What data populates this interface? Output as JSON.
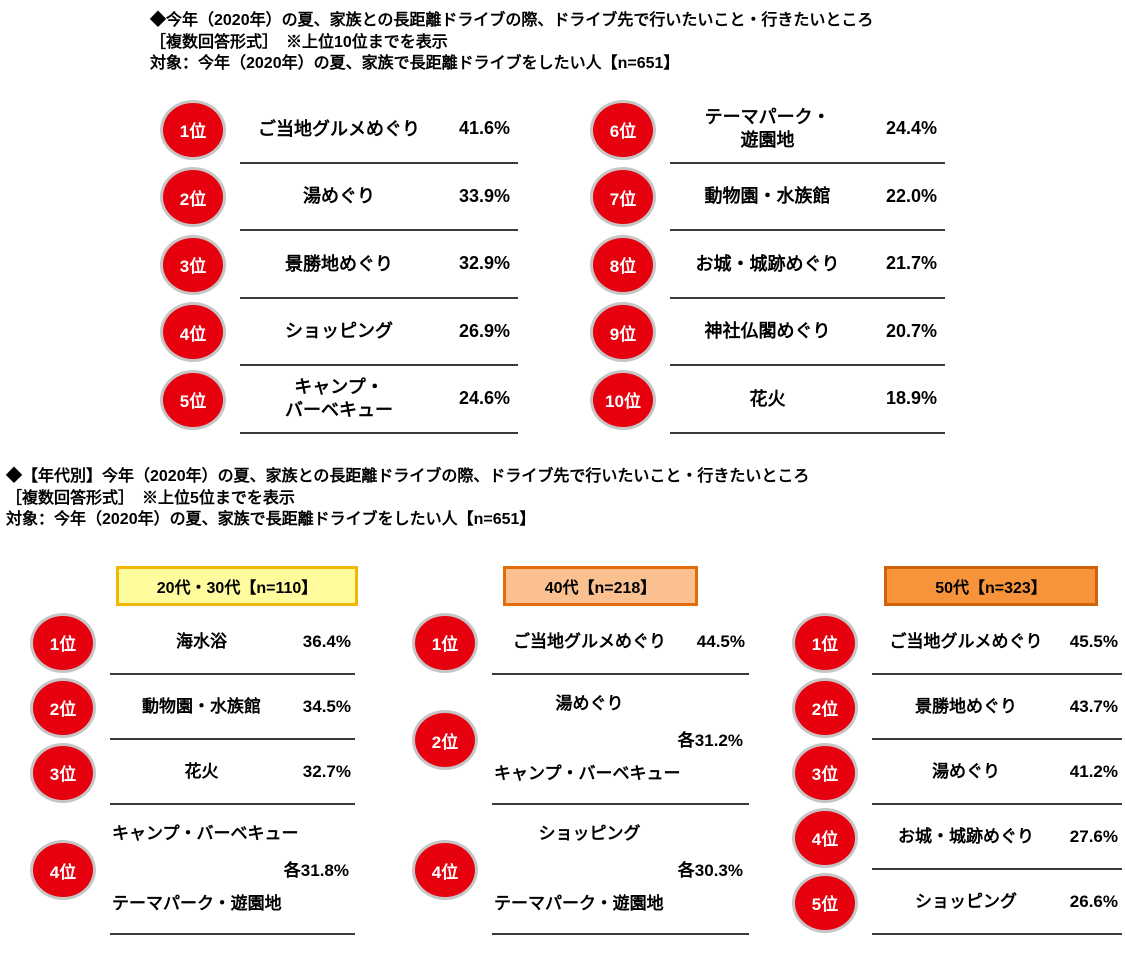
{
  "colors": {
    "badge_red": "#e7000e",
    "badge_ring": "#c6c6c6",
    "rule_line": "#3a3a3a",
    "age_group_1_bg": "#fffc9e",
    "age_group_1_border": "#f2b705",
    "age_group_2_bg": "#fac090",
    "age_group_2_border": "#e36c0a",
    "age_group_3_bg": "#f7943b",
    "age_group_3_border": "#d2620a"
  },
  "section1": {
    "title": "◆今年（2020年）の夏、家族との長距離ドライブの際、ドライブ先で行いたいこと・行きたいところ",
    "subtitle": "［複数回答形式］　※上位10位までを表示",
    "target": "対象：今年（2020年）の夏、家族で長距離ドライブをしたい人【n=651】",
    "left_rows": [
      {
        "rank": "1位",
        "item": "ご当地グルメめぐり",
        "pct": "41.6%"
      },
      {
        "rank": "2位",
        "item": "湯めぐり",
        "pct": "33.9%"
      },
      {
        "rank": "3位",
        "item": "景勝地めぐり",
        "pct": "32.9%"
      },
      {
        "rank": "4位",
        "item": "ショッピング",
        "pct": "26.9%"
      },
      {
        "rank": "5位",
        "item": "キャンプ・\nバーベキュー",
        "pct": "24.6%"
      }
    ],
    "right_rows": [
      {
        "rank": "6位",
        "item": "テーマパーク・\n遊園地",
        "pct": "24.4%"
      },
      {
        "rank": "7位",
        "item": "動物園・水族館",
        "pct": "22.0%"
      },
      {
        "rank": "8位",
        "item": "お城・城跡めぐり",
        "pct": "21.7%"
      },
      {
        "rank": "9位",
        "item": "神社仏閣めぐり",
        "pct": "20.7%"
      },
      {
        "rank": "10位",
        "item": "花火",
        "pct": "18.9%"
      }
    ]
  },
  "section2": {
    "title": "◆【年代別】今年（2020年）の夏、家族との長距離ドライブの際、ドライブ先で行いたいこと・行きたいところ",
    "subtitle": "［複数回答形式］　※上位5位までを表示",
    "target": "対象：今年（2020年）の夏、家族で長距離ドライブをしたい人【n=651】",
    "groups": [
      {
        "header": "20代・30代【n=110】",
        "rows": [
          {
            "rank": "1位",
            "item": "海水浴",
            "pct": "36.4%"
          },
          {
            "rank": "2位",
            "item": "動物園・水族館",
            "pct": "34.5%"
          },
          {
            "rank": "3位",
            "item": "花火",
            "pct": "32.7%"
          },
          {
            "rank": "4位",
            "item1": "キャンプ・バーベキュー",
            "item1_align": "left",
            "pct": "各31.8%",
            "item2": "テーマパーク・遊園地"
          }
        ]
      },
      {
        "header": "40代【n=218】",
        "rows": [
          {
            "rank": "1位",
            "item": "ご当地グルメめぐり",
            "pct": "44.5%"
          },
          {
            "rank": "2位",
            "item1": "湯めぐり",
            "item1_align": "center",
            "pct": "各31.2%",
            "item2": "キャンプ・バーベキュー"
          },
          {
            "rank": "4位",
            "item1": "ショッピング",
            "item1_align": "center",
            "pct": "各30.3%",
            "item2": "テーマパーク・遊園地"
          }
        ]
      },
      {
        "header": "50代【n=323】",
        "rows": [
          {
            "rank": "1位",
            "item": "ご当地グルメめぐり",
            "pct": "45.5%"
          },
          {
            "rank": "2位",
            "item": "景勝地めぐり",
            "pct": "43.7%"
          },
          {
            "rank": "3位",
            "item": "湯めぐり",
            "pct": "41.2%"
          },
          {
            "rank": "4位",
            "item": "お城・城跡めぐり",
            "pct": "27.6%"
          },
          {
            "rank": "5位",
            "item": "ショッピング",
            "pct": "26.6%"
          }
        ]
      }
    ]
  },
  "chart_data": [
    {
      "type": "table",
      "title": "今年（2020年）の夏、家族との長距離ドライブの際、ドライブ先で行いたいこと・行きたいところ（複数回答形式・上位10位）",
      "sample_note": "対象：今年（2020年）の夏、家族で長距離ドライブをしたい人【n=651】",
      "categories": [
        "ご当地グルメめぐり",
        "湯めぐり",
        "景勝地めぐり",
        "ショッピング",
        "キャンプ・バーベキュー",
        "テーマパーク・遊園地",
        "動物園・水族館",
        "お城・城跡めぐり",
        "神社仏閣めぐり",
        "花火"
      ],
      "ranks": [
        "1位",
        "2位",
        "3位",
        "4位",
        "5位",
        "6位",
        "7位",
        "8位",
        "9位",
        "10位"
      ],
      "values": [
        41.6,
        33.9,
        32.9,
        26.9,
        24.6,
        24.4,
        22.0,
        21.7,
        20.7,
        18.9
      ],
      "unit": "%"
    },
    {
      "type": "table",
      "title": "【年代別】今年（2020年）の夏、家族との長距離ドライブの際、ドライブ先で行いたいこと・行きたいところ（複数回答形式・上位5位）",
      "sample_note": "対象：今年（2020年）の夏、家族で長距離ドライブをしたい人【n=651】",
      "unit": "%",
      "series": [
        {
          "name": "20代・30代【n=110】",
          "ranks": [
            "1位",
            "2位",
            "3位",
            "4位",
            "4位"
          ],
          "categories": [
            "海水浴",
            "動物園・水族館",
            "花火",
            "キャンプ・バーベキュー",
            "テーマパーク・遊園地"
          ],
          "values": [
            36.4,
            34.5,
            32.7,
            31.8,
            31.8
          ]
        },
        {
          "name": "40代【n=218】",
          "ranks": [
            "1位",
            "2位",
            "2位",
            "4位",
            "4位"
          ],
          "categories": [
            "ご当地グルメめぐり",
            "湯めぐり",
            "キャンプ・バーベキュー",
            "ショッピング",
            "テーマパーク・遊園地"
          ],
          "values": [
            44.5,
            31.2,
            31.2,
            30.3,
            30.3
          ]
        },
        {
          "name": "50代【n=323】",
          "ranks": [
            "1位",
            "2位",
            "3位",
            "4位",
            "5位"
          ],
          "categories": [
            "ご当地グルメめぐり",
            "景勝地めぐり",
            "湯めぐり",
            "お城・城跡めぐり",
            "ショッピング"
          ],
          "values": [
            45.5,
            43.7,
            41.2,
            27.6,
            26.6
          ]
        }
      ]
    }
  ]
}
